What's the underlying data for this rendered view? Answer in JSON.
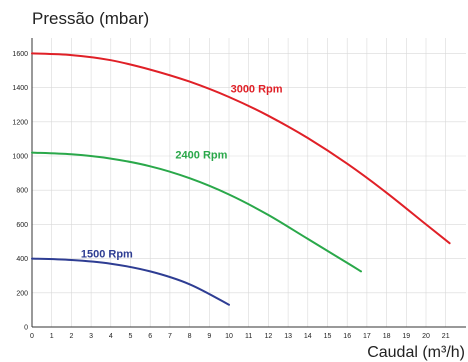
{
  "chart_data": {
    "type": "line",
    "ylabel": "Pressão (mbar)",
    "xlabel": "Caudal (m³/h)",
    "xlim": [
      0,
      22
    ],
    "ylim": [
      0,
      1700
    ],
    "x_ticks": [
      0,
      1,
      2,
      3,
      4,
      5,
      6,
      7,
      8,
      9,
      10,
      11,
      12,
      13,
      14,
      15,
      16,
      17,
      18,
      19,
      20,
      21
    ],
    "y_ticks": [
      0,
      200,
      400,
      600,
      800,
      1000,
      1200,
      1400,
      1600
    ],
    "grid": true,
    "series": [
      {
        "name": "3000 Rpm",
        "color": "#e02027",
        "x": [
          0,
          2,
          4,
          6,
          8,
          10,
          12,
          14,
          16,
          18,
          20,
          21.2
        ],
        "y": [
          1600,
          1590,
          1560,
          1505,
          1435,
          1345,
          1235,
          1105,
          955,
          785,
          600,
          490
        ]
      },
      {
        "name": "2400 Rpm",
        "color": "#2aa84a",
        "x": [
          0,
          2,
          4,
          6,
          8,
          10,
          12,
          14,
          16,
          16.7
        ],
        "y": [
          1020,
          1010,
          985,
          940,
          870,
          775,
          655,
          515,
          375,
          325
        ]
      },
      {
        "name": "1500 Rpm",
        "color": "#2e3d93",
        "x": [
          0,
          2,
          4,
          6,
          8,
          10
        ],
        "y": [
          400,
          392,
          370,
          325,
          250,
          130
        ]
      }
    ],
    "series_label_positions": [
      {
        "x": 11.4,
        "y": 1370
      },
      {
        "x": 8.6,
        "y": 985
      },
      {
        "x": 3.8,
        "y": 405
      }
    ]
  }
}
